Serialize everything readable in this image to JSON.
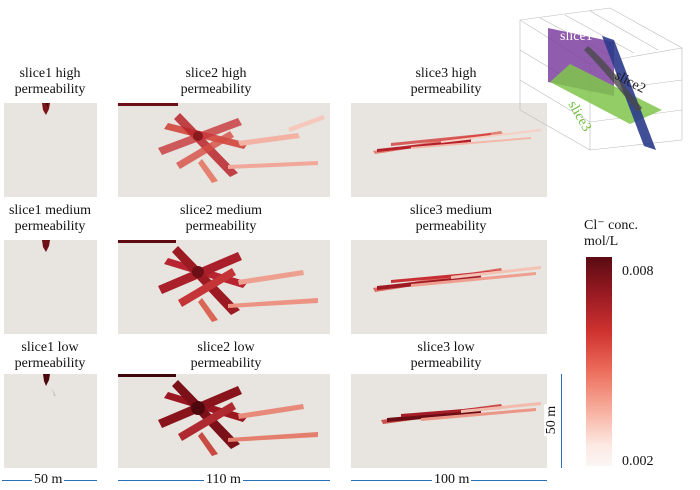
{
  "panels": [
    {
      "row": "high",
      "slice1": "slice1 high\npermeability",
      "slice2": "slice2 high\npermeability",
      "slice3": "slice3 high\npermeability"
    },
    {
      "row": "medium",
      "slice1": "slice1 medium\npermeability",
      "slice2": "slice2 medium\npermeability",
      "slice3": "slice3 medium\npermeability"
    },
    {
      "row": "low",
      "slice1": "slice1 low\npermeability",
      "slice2": "slice2 low\npermeability",
      "slice3": "slice3 low\npermeability"
    }
  ],
  "colorbar": {
    "title_line1": "Cl⁻ conc.",
    "title_line2": "mol/L",
    "max_label": "0.008",
    "min_label": "0.002",
    "colors": [
      "#5a0b12",
      "#cf3330",
      "#fbf6f4"
    ]
  },
  "dimensions": {
    "width1": "50 m",
    "width2": "110 m",
    "width3": "100 m",
    "height": "50 m",
    "color": "#2a6fb3"
  },
  "inset": {
    "slice1": "slice1",
    "slice2": "slice2",
    "slice3": "slice3"
  }
}
